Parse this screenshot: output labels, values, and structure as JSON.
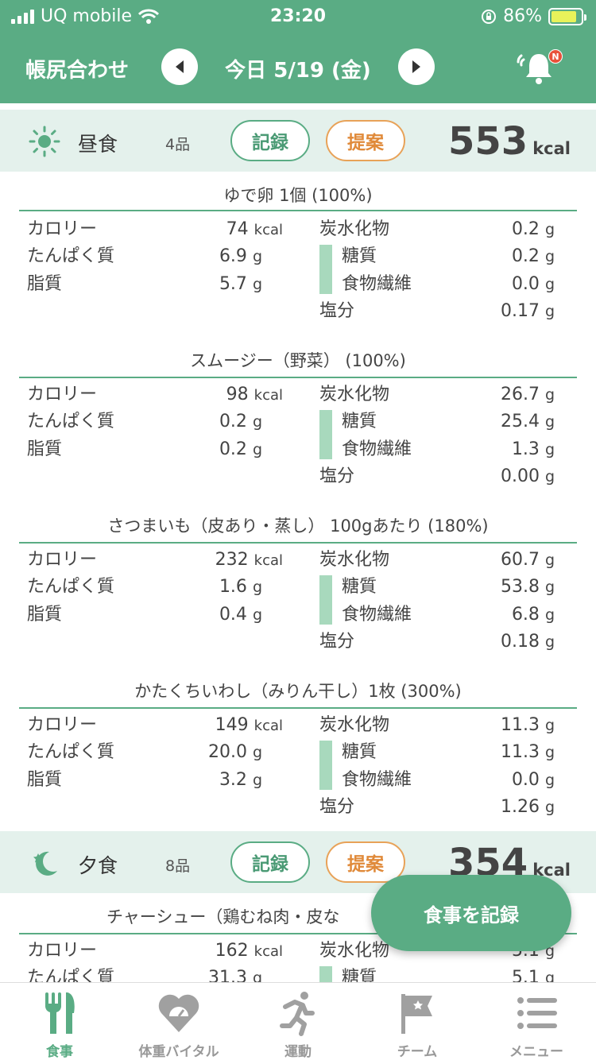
{
  "status_bar": {
    "carrier": "UQ mobile",
    "time": "23:20",
    "battery": "86%"
  },
  "header": {
    "title": "帳尻合わせ",
    "date": "今日 5/19 (金)",
    "prev_icon": "chevron-left-icon",
    "next_icon": "chevron-right-icon",
    "bell_icon": "bell-icon",
    "bell_badge": "N"
  },
  "units": {
    "kcal": "kcal",
    "g": "g"
  },
  "labels": {
    "calorie": "カロリー",
    "protein": "たんぱく質",
    "fat": "脂質",
    "carbs": "炭水化物",
    "sugar": "糖質",
    "fiber": "食物繊維",
    "salt": "塩分"
  },
  "meals": [
    {
      "name": "昼食",
      "count": "4品",
      "record_label": "記録",
      "suggest_label": "提案",
      "kcal": "553",
      "icon": "sun-icon",
      "foods": [
        {
          "title": "ゆで卵 1個 (100%)",
          "calorie": "74",
          "protein": "6.9",
          "fat": "5.7",
          "carbs": "0.2",
          "sugar": "0.2",
          "fiber": "0.0",
          "salt": "0.17"
        },
        {
          "title": "スムージー（野菜） (100%)",
          "calorie": "98",
          "protein": "0.2",
          "fat": "0.2",
          "carbs": "26.7",
          "sugar": "25.4",
          "fiber": "1.3",
          "salt": "0.00"
        },
        {
          "title": "さつまいも（皮あり・蒸し） 100gあたり (180%)",
          "calorie": "232",
          "protein": "1.6",
          "fat": "0.4",
          "carbs": "60.7",
          "sugar": "53.8",
          "fiber": "6.8",
          "salt": "0.18"
        },
        {
          "title": "かたくちいわし（みりん干し）1枚 (300%)",
          "calorie": "149",
          "protein": "20.0",
          "fat": "3.2",
          "carbs": "11.3",
          "sugar": "11.3",
          "fiber": "0.0",
          "salt": "1.26"
        }
      ]
    },
    {
      "name": "夕食",
      "count": "8品",
      "record_label": "記録",
      "suggest_label": "提案",
      "kcal": "354",
      "icon": "moon-star-icon",
      "foods": [
        {
          "title": "チャーシュー（鶏むね肉・皮な",
          "calorie": "162",
          "protein": "31.3",
          "carbs": "5.1",
          "sugar": "5.1"
        }
      ]
    }
  ],
  "fab": {
    "label": "食事を記録"
  },
  "tabs": [
    {
      "label": "食事",
      "icon": "fork-knife-icon",
      "active": true
    },
    {
      "label": "体重バイタル",
      "icon": "heart-scale-icon",
      "active": false
    },
    {
      "label": "運動",
      "icon": "runner-icon",
      "active": false
    },
    {
      "label": "チーム",
      "icon": "flag-icon",
      "active": false
    },
    {
      "label": "メニュー",
      "icon": "menu-icon",
      "active": false
    }
  ]
}
